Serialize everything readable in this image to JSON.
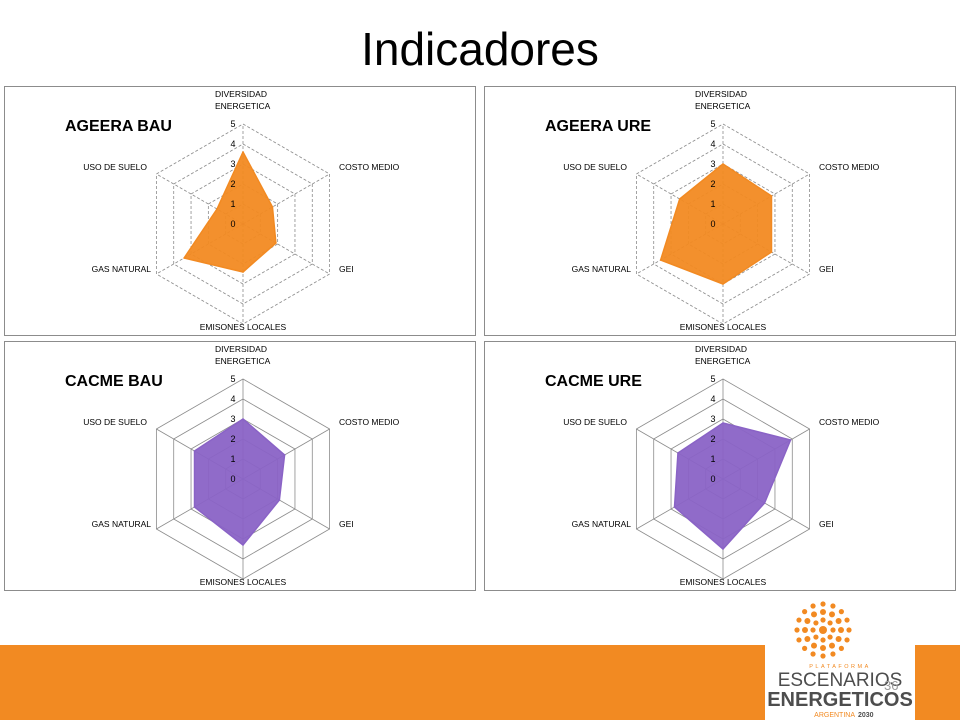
{
  "slide": {
    "title": "Indicadores",
    "page_number": "36"
  },
  "logo": {
    "line1": "PLATAFORMA",
    "line2": "ESCENARIOS",
    "line3": "ENERGETICOS",
    "line4a": "ARGENTINA",
    "line4b": "2030",
    "colors": {
      "orange": "#f28a22",
      "gray": "#4d4d4d"
    }
  },
  "chart_data": [
    {
      "type": "radar",
      "title": "AGEERA BAU",
      "axes": [
        "DIVERSIDAD ENERGETICA",
        "COSTO MEDIO",
        "GEI",
        "EMISONES LOCALES",
        "GAS NATURAL",
        "USO DE SUELO"
      ],
      "range": [
        0,
        5
      ],
      "ticks": [
        "0",
        "1",
        "2",
        "3",
        "4",
        "5"
      ],
      "gridlines": "dashed",
      "fill_color": "#f28a22",
      "values": [
        3.6,
        1.7,
        1.9,
        2.4,
        3.4,
        1.5
      ]
    },
    {
      "type": "radar",
      "title": "AGEERA URE",
      "axes": [
        "DIVERSIDAD ENERGETICA",
        "COSTO MEDIO",
        "GEI",
        "EMISONES LOCALES",
        "GAS NATURAL",
        "USO DE SUELO"
      ],
      "range": [
        0,
        5
      ],
      "ticks": [
        "0",
        "1",
        "2",
        "3",
        "4",
        "5"
      ],
      "gridlines": "dashed",
      "fill_color": "#f28a22",
      "values": [
        3.0,
        2.8,
        2.8,
        3.0,
        3.6,
        2.5
      ]
    },
    {
      "type": "radar",
      "title": "CACME BAU",
      "axes": [
        "DIVERSIDAD ENERGETICA",
        "COSTO MEDIO",
        "GEI",
        "EMISONES LOCALES",
        "GAS NATURAL",
        "USO DE SUELO"
      ],
      "range": [
        0,
        5
      ],
      "ticks": [
        "0",
        "1",
        "2",
        "3",
        "4",
        "5"
      ],
      "gridlines": "solid",
      "fill_color": "#8a63c6",
      "values": [
        3.0,
        2.4,
        2.1,
        3.3,
        2.8,
        2.8
      ]
    },
    {
      "type": "radar",
      "title": "CACME URE",
      "axes": [
        "DIVERSIDAD ENERGETICA",
        "COSTO MEDIO",
        "GEI",
        "EMISONES LOCALES",
        "GAS NATURAL",
        "USO DE SUELO"
      ],
      "range": [
        0,
        5
      ],
      "ticks": [
        "0",
        "1",
        "2",
        "3",
        "4",
        "5"
      ],
      "gridlines": "solid",
      "fill_color": "#8a63c6",
      "values": [
        2.8,
        3.9,
        2.4,
        3.5,
        2.8,
        2.6
      ]
    }
  ]
}
